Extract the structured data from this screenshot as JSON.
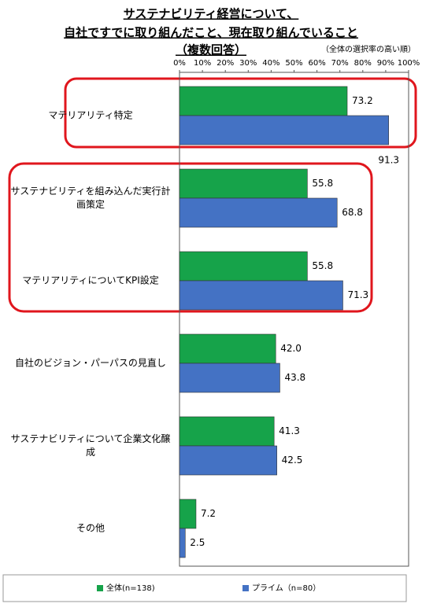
{
  "chart_data": {
    "type": "bar",
    "orientation": "horizontal",
    "title": [
      "サステナビリティ経営について、",
      "自社ですでに取り組んだこと、現在取り組んでいること",
      "（複数回答）"
    ],
    "subtitle": "（全体の選択率の高い順）",
    "categories": [
      "マテリアリティ特定",
      "サステナビリティを組み込んだ実行計画策定",
      "マテリアリティについてKPI設定",
      "自社のビジョン・パーパスの見直し",
      "サステナビリティについて企業文化醸成",
      "その他"
    ],
    "series": [
      {
        "name": "全体(n=138)",
        "color": "#16a34a",
        "values": [
          73.2,
          55.8,
          55.8,
          42.0,
          41.3,
          7.2
        ],
        "value_labels": [
          "73.2",
          "55.8",
          "55.8",
          "42.0",
          "41.3",
          "7.2"
        ]
      },
      {
        "name": "プライム（n=80）",
        "color": "#4472c4",
        "values": [
          91.3,
          68.8,
          71.3,
          43.8,
          42.5,
          2.5
        ],
        "value_labels": [
          "91.3",
          "68.8",
          "71.3",
          "43.8",
          "42.5",
          "2.5"
        ]
      }
    ],
    "xlim": [
      0,
      100
    ],
    "xticks": [
      {
        "value": 0,
        "label": "0%"
      },
      {
        "value": 10,
        "label": "10%"
      },
      {
        "value": 20,
        "label": "20%"
      },
      {
        "value": 30,
        "label": "30%"
      },
      {
        "value": 40,
        "label": "40%"
      },
      {
        "value": 50,
        "label": "50%"
      },
      {
        "value": 60,
        "label": "60%"
      },
      {
        "value": 70,
        "label": "70%"
      },
      {
        "value": 80,
        "label": "80%"
      },
      {
        "value": 90,
        "label": "90%"
      },
      {
        "value": 100,
        "label": "100%"
      }
    ],
    "legend": "bottom"
  }
}
